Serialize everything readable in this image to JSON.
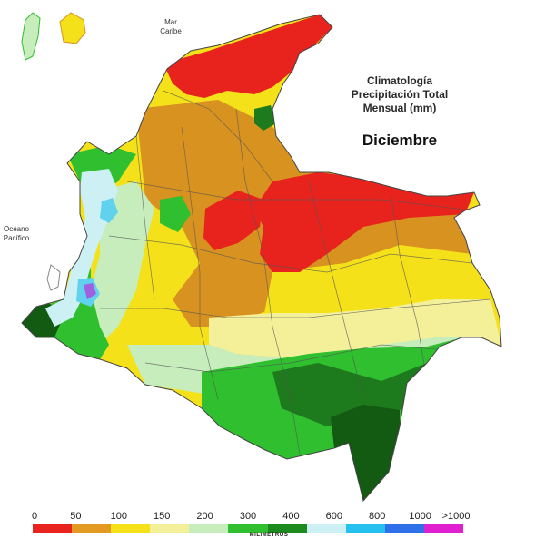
{
  "title": {
    "line1": "Climatología",
    "line2": "Precipitación Total",
    "line3": "Mensual (mm)",
    "month": "Diciembre"
  },
  "labels": {
    "sea_north_1": "Mar",
    "sea_north_2": "Caribe",
    "sea_west_1": "Océano",
    "sea_west_2": "Pacífico"
  },
  "legend": {
    "unit_label": "MILIMETROS",
    "ticks": [
      "0",
      "50",
      "100",
      "150",
      "200",
      "300",
      "400",
      "600",
      "800",
      "1000",
      ">1000"
    ],
    "colors": [
      "#e8231d",
      "#e39a20",
      "#f4e11a",
      "#f4f09a",
      "#c6edbb",
      "#2fbf2f",
      "#1d8a1d",
      "#ccf0f4",
      "#25c0ee",
      "#2f6fe8",
      "#e020d0"
    ]
  },
  "map": {
    "colors": {
      "very_dry": "#e8231d",
      "dry": "#d8921f",
      "moderate": "#f4e11a",
      "light": "#f4f09a",
      "pale_green": "#c6edbb",
      "green": "#2fbf2f",
      "dark_green": "#1d7a1d",
      "very_dark_green": "#135a13",
      "pale_cyan": "#ccf0f4",
      "cyan": "#60d2ee",
      "purple": "#a060e0",
      "boundary": "#555555"
    }
  }
}
